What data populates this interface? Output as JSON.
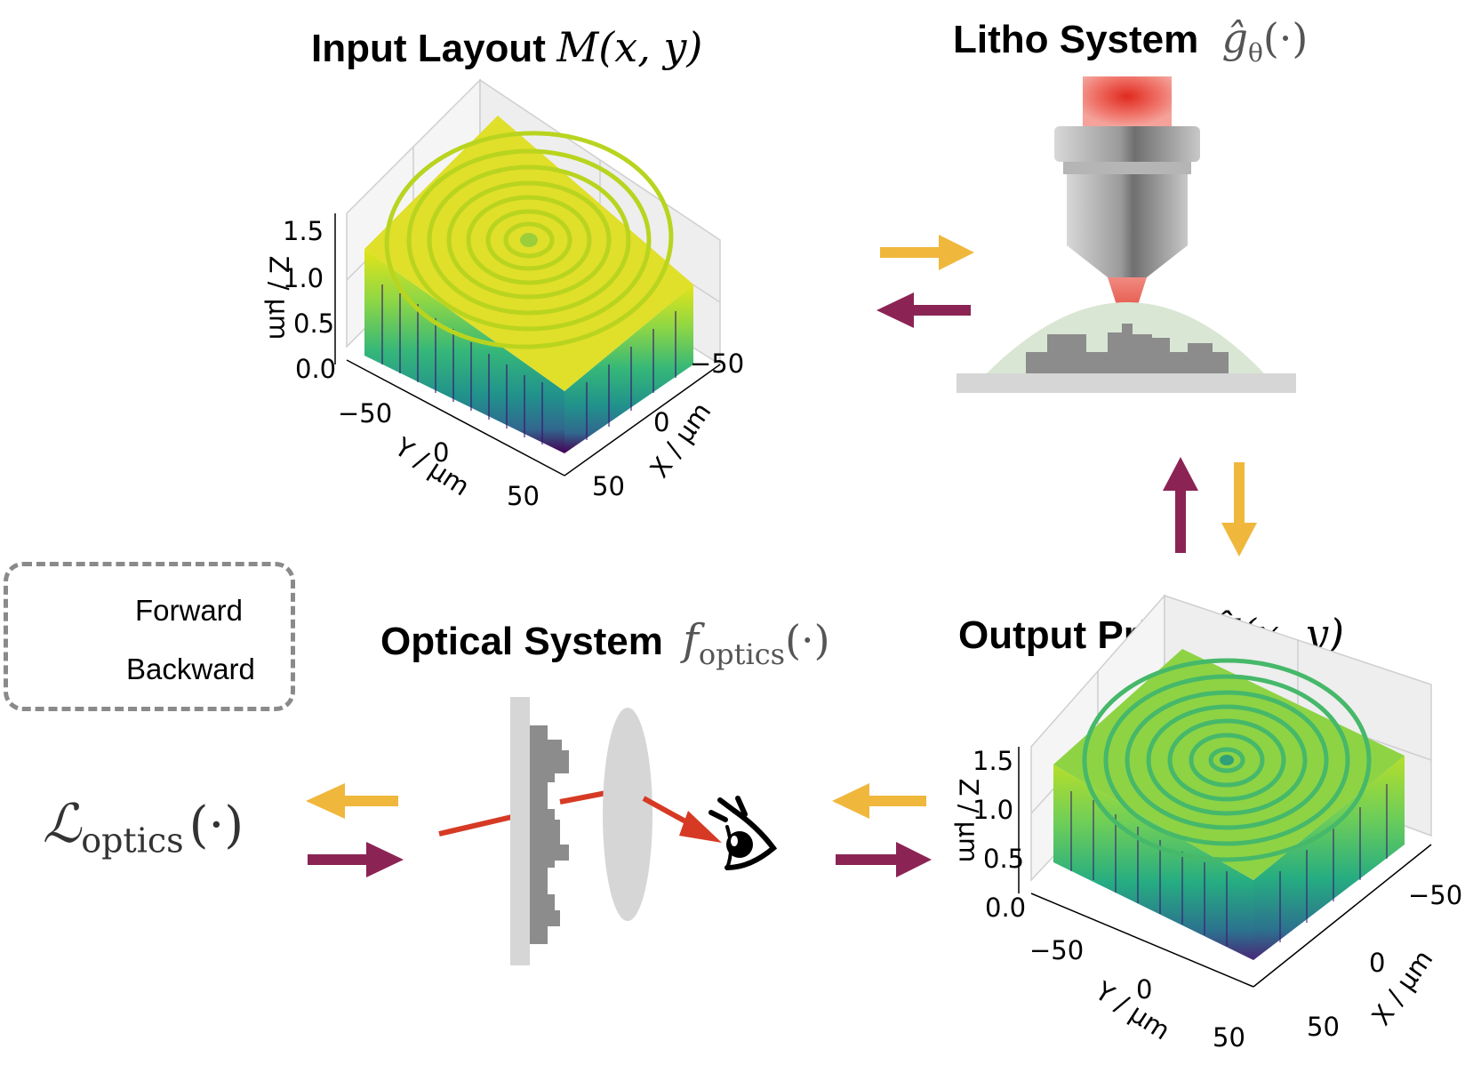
{
  "colors": {
    "forward": "#f0b73d",
    "backward": "#8b2455",
    "ray": "#d63a24",
    "substrate": "#d6d6d6",
    "structure": "#8c8c8c",
    "resist": "#d9e6d4",
    "laser": "#e8473a"
  },
  "input_layout": {
    "title_text": "Input Layout",
    "title_math": "M(x, y)",
    "z_ticks": [
      "1.5",
      "1.0",
      "0.5",
      "0.0"
    ],
    "z_label": "Z / μm",
    "y_ticks": [
      "−50",
      "0",
      "50"
    ],
    "y_label": "Y / μm",
    "x_ticks": [
      "−50",
      "0",
      "50"
    ],
    "x_label": "X / μm"
  },
  "litho_system": {
    "title_text": "Litho System",
    "title_math": "ĝ",
    "title_math_sub": "θ",
    "title_math_arg": "(·)"
  },
  "output_print": {
    "title_text": "Output Print",
    "title_math": "Ĥ(x, y)",
    "z_ticks": [
      "1.5",
      "1.0",
      "0.5",
      "0.0"
    ],
    "z_label": "Z / μm",
    "y_ticks": [
      "−50",
      "0",
      "50"
    ],
    "y_label": "Y / μm",
    "x_ticks": [
      "−50",
      "0",
      "50"
    ],
    "x_label": "X / μm"
  },
  "optical_system": {
    "title_text": "Optical System",
    "title_math": "f",
    "title_math_sub": "optics",
    "title_math_arg": "(·)"
  },
  "loss": {
    "symbol": "ℒ",
    "sub": "optics",
    "arg": "(·)"
  },
  "legend": {
    "forward_label": "Forward",
    "backward_label": "Backward"
  }
}
